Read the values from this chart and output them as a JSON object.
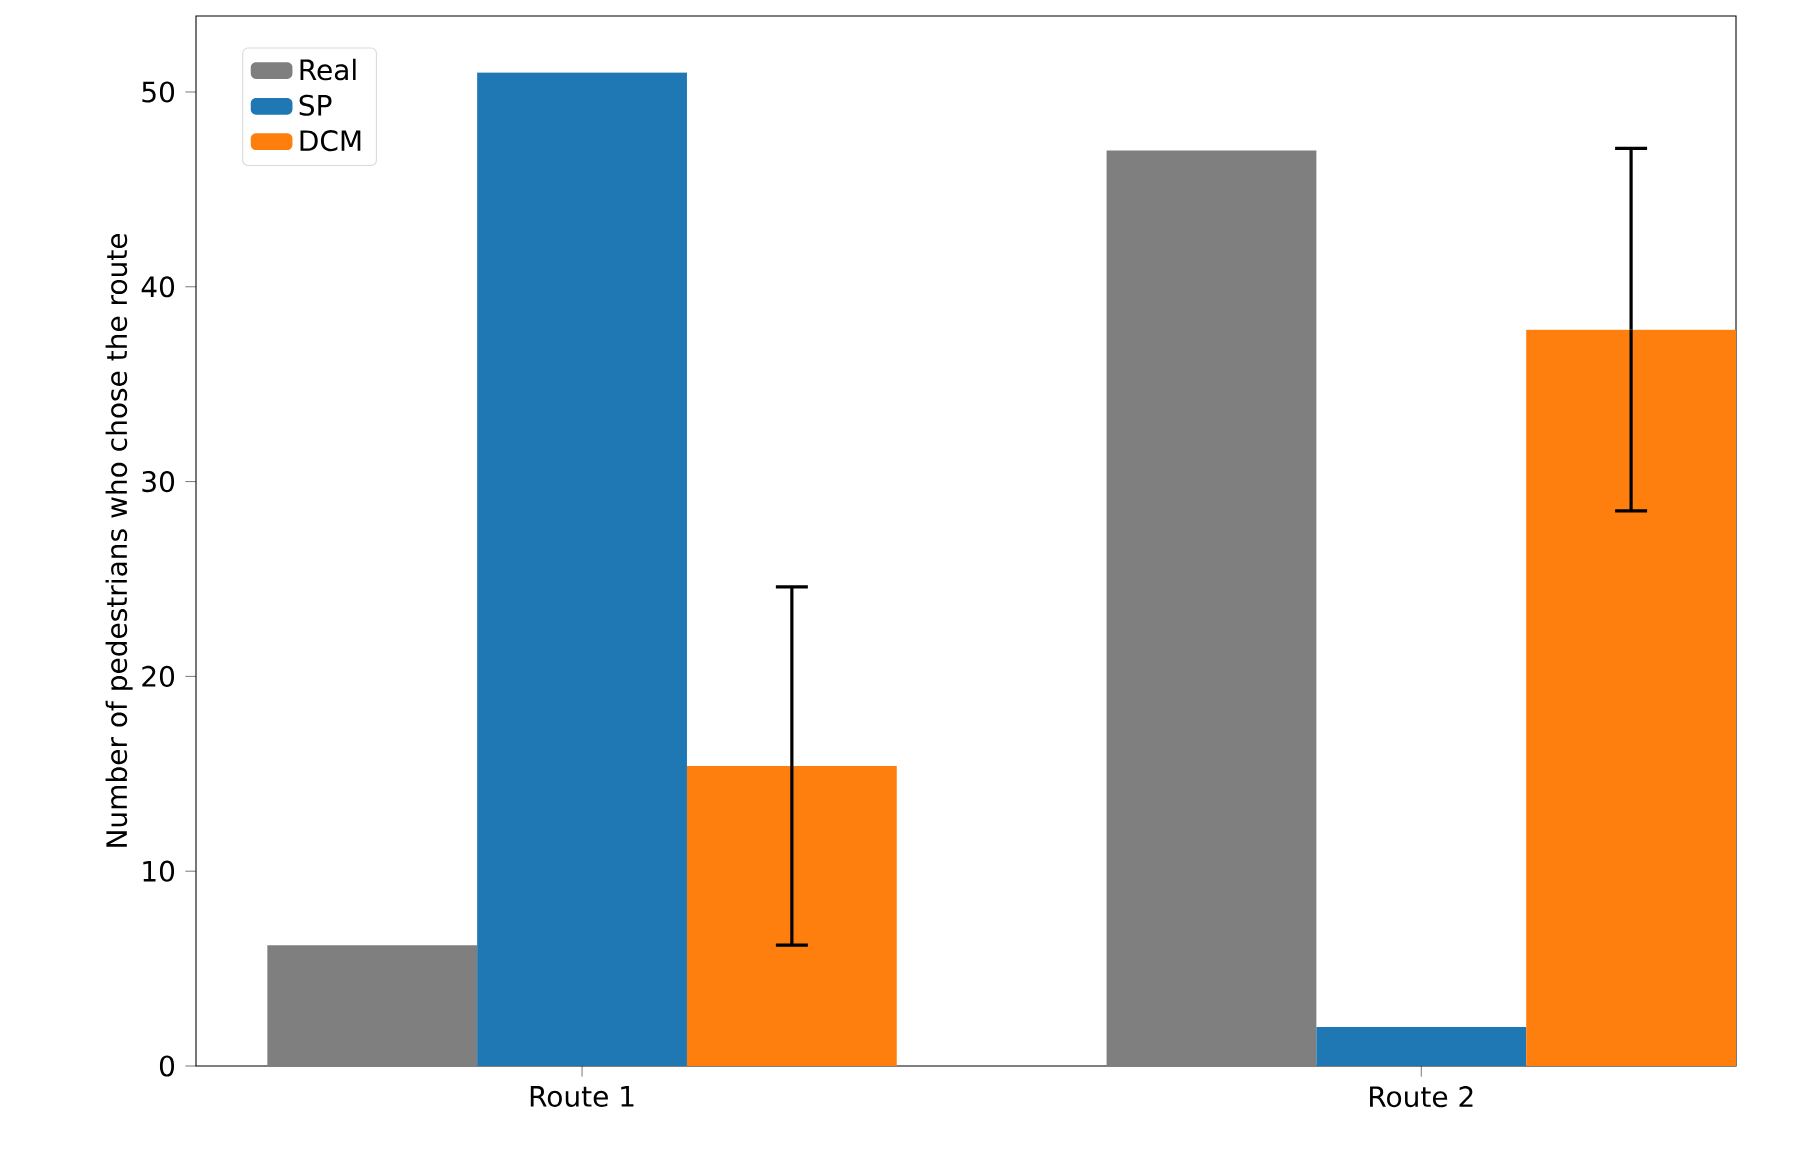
{
  "chart_data": {
    "type": "bar",
    "ylabel": "Number of pedestrians who chose the route",
    "categories": [
      "Route 1",
      "Route 2"
    ],
    "series": [
      {
        "name": "Real",
        "color": "#7f7f7f",
        "values": [
          6.2,
          47
        ]
      },
      {
        "name": "SP",
        "color": "#1f77b4",
        "values": [
          51,
          2
        ]
      },
      {
        "name": "DCM",
        "color": "#ff7f0e",
        "values": [
          15.4,
          37.8
        ],
        "errors": [
          9.2,
          9.3
        ]
      }
    ],
    "ylim": [
      0,
      53.9
    ],
    "yticks": [
      0,
      10,
      20,
      30,
      40,
      50
    ],
    "legend": "top left"
  }
}
